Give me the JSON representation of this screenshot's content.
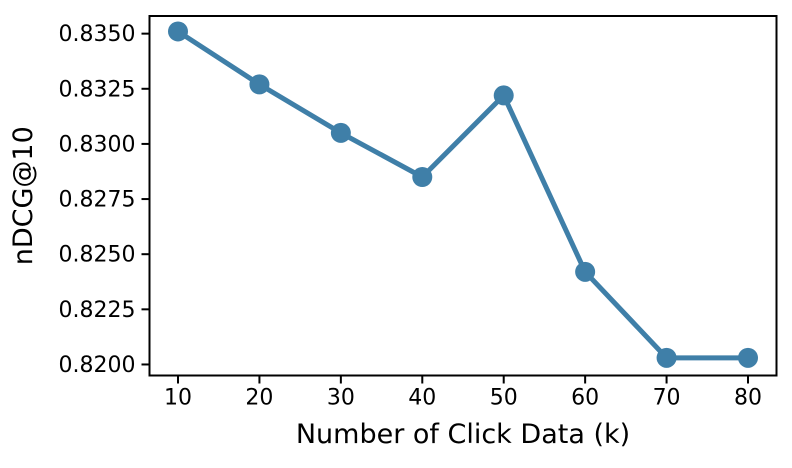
{
  "chart_data": {
    "type": "line",
    "title": "",
    "xlabel": "Number of Click Data (k)",
    "ylabel": "nDCG@10",
    "x": [
      10,
      20,
      30,
      40,
      50,
      60,
      70,
      80
    ],
    "y": [
      0.8351,
      0.8327,
      0.8305,
      0.8285,
      0.8322,
      0.8242,
      0.8203,
      0.8203
    ],
    "xticks": [
      10,
      20,
      30,
      40,
      50,
      60,
      70,
      80
    ],
    "yticks": [
      0.82,
      0.8225,
      0.825,
      0.8275,
      0.83,
      0.8325,
      0.835
    ],
    "ytick_labels": [
      "0.8200",
      "0.8225",
      "0.8250",
      "0.8275",
      "0.8300",
      "0.8325",
      "0.8350"
    ],
    "xlim": [
      6.5,
      83.5
    ],
    "ylim": [
      0.8195,
      0.8358
    ],
    "grid": false,
    "legend_position": "none",
    "marker": "circle",
    "colors": {
      "line": "#3f7fa8",
      "marker": "#3f7fa8",
      "axis": "#000000",
      "text": "#000000",
      "background": "#ffffff"
    }
  }
}
